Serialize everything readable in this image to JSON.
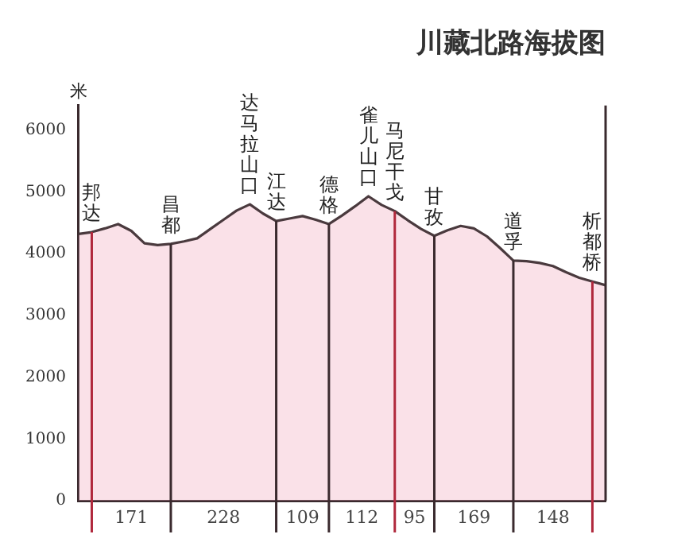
{
  "chart_data": {
    "type": "area",
    "title": "川藏北路海拔图",
    "ylabel": "米",
    "categories": [
      null,
      "邦达",
      null,
      null,
      null,
      null,
      null,
      "昌都",
      null,
      null,
      null,
      null,
      null,
      "达马拉山口",
      null,
      "江达",
      null,
      null,
      null,
      "德格",
      null,
      null,
      "雀儿山口",
      null,
      "马尼干戈",
      null,
      null,
      "甘孜",
      null,
      null,
      null,
      null,
      null,
      "道孚",
      null,
      null,
      null,
      null,
      null,
      "析都桥",
      null
    ],
    "series": [
      {
        "color": "#4a3a3e",
        "values": [
          4320,
          4350,
          4410,
          4480,
          4370,
          4170,
          4140,
          4160,
          4200,
          4250,
          4400,
          4550,
          4700,
          4800,
          4650,
          4530,
          4570,
          4610,
          4550,
          4480,
          4620,
          4770,
          4930,
          4790,
          4690,
          4540,
          4400,
          4290,
          4380,
          4450,
          4410,
          4280,
          4090,
          3890,
          3880,
          3850,
          3800,
          3700,
          3610,
          3550,
          3490
        ]
      }
    ],
    "ylim": [
      0,
      6400
    ],
    "yticks": [
      0,
      1000,
      2000,
      3000,
      4000,
      5000,
      6000
    ],
    "legend": false,
    "grid": false,
    "ref_lines": [
      {
        "axis": "x",
        "value": "邦达",
        "color": "#b0283c"
      },
      {
        "axis": "x",
        "value": "昌都",
        "color": "#3a2a2e"
      },
      {
        "axis": "x",
        "value": "江达",
        "color": "#3a2a2e"
      },
      {
        "axis": "x",
        "value": "德格",
        "color": "#3a2a2e"
      },
      {
        "axis": "x",
        "value": "马尼干戈",
        "color": "#b0283c"
      },
      {
        "axis": "x",
        "value": "甘孜",
        "color": "#3a2a2e"
      },
      {
        "axis": "x",
        "value": "道孚",
        "color": "#3a2a2e"
      },
      {
        "axis": "x",
        "value": "析都桥",
        "color": "#b0283c"
      }
    ],
    "annotations": [
      "171",
      "228",
      "109",
      "112",
      "95",
      "169",
      "148"
    ]
  }
}
